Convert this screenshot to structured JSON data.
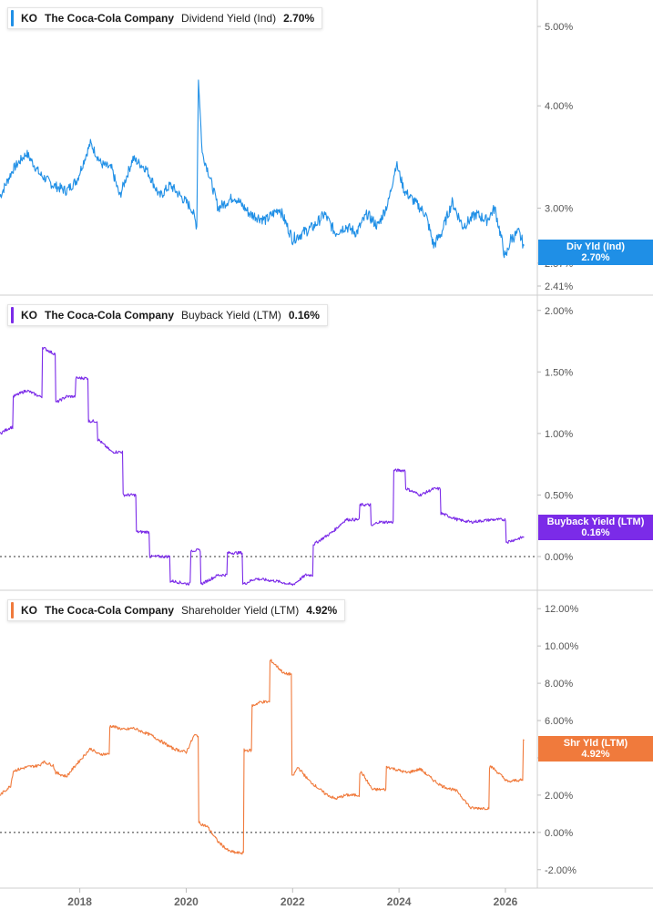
{
  "colors": {
    "dividend": "#1f8fe6",
    "buyback": "#7b2be8",
    "shareholder": "#f07a3c",
    "axis": "#888888",
    "grid": "#d9d9d9"
  },
  "x_axis": {
    "ticks": [
      "2018",
      "2020",
      "2022",
      "2024",
      "2026"
    ]
  },
  "panels": [
    {
      "ticker": "KO",
      "company": "The Coca-Cola Company",
      "metric": "Dividend Yield (Ind)",
      "value": "2.70%",
      "badge_label": "Div Yld (Ind)",
      "badge_value": "2.70%",
      "y_ticks": [
        "5.00%",
        "4.00%",
        "3.00%",
        "2.57%",
        "2.41%"
      ]
    },
    {
      "ticker": "KO",
      "company": "The Coca-Cola Company",
      "metric": "Buyback Yield (LTM)",
      "value": "0.16%",
      "badge_label": "Buyback Yield (LTM)",
      "badge_value": "0.16%",
      "y_ticks": [
        "2.00%",
        "1.50%",
        "1.00%",
        "0.50%",
        "0.00%"
      ]
    },
    {
      "ticker": "KO",
      "company": "The Coca-Cola Company",
      "metric": "Shareholder Yield (LTM)",
      "value": "4.92%",
      "badge_label": "Shr Yld (LTM)",
      "badge_value": "4.92%",
      "y_ticks": [
        "12.00%",
        "10.00%",
        "8.00%",
        "6.00%",
        "4.00%",
        "2.00%",
        "0.00%",
        "-2.00%"
      ]
    }
  ],
  "chart_data": [
    {
      "type": "line",
      "title": "KO The Coca-Cola Company Dividend Yield (Ind) 2.70%",
      "y_scale": "log",
      "ylim": [
        2.41,
        5.25
      ],
      "xlim": [
        2016.5,
        2026.6
      ],
      "series": [
        {
          "name": "Dividend Yield (Ind)",
          "x": [
            2016.5,
            2016.75,
            2017.0,
            2017.25,
            2017.5,
            2017.75,
            2017.95,
            2018.2,
            2018.4,
            2018.6,
            2018.75,
            2019.0,
            2019.25,
            2019.5,
            2019.7,
            2019.9,
            2020.1,
            2020.2,
            2020.23,
            2020.3,
            2020.4,
            2020.6,
            2020.9,
            2021.2,
            2021.5,
            2021.75,
            2022.0,
            2022.2,
            2022.4,
            2022.6,
            2022.8,
            2023.0,
            2023.2,
            2023.4,
            2023.6,
            2023.8,
            2023.95,
            2024.1,
            2024.3,
            2024.5,
            2024.65,
            2024.8,
            2025.0,
            2025.2,
            2025.45,
            2025.65,
            2025.8,
            2026.0,
            2026.1,
            2026.25,
            2026.35
          ],
          "values": [
            3.1,
            3.35,
            3.5,
            3.3,
            3.2,
            3.15,
            3.25,
            3.6,
            3.4,
            3.35,
            3.1,
            3.45,
            3.35,
            3.1,
            3.2,
            3.1,
            3.0,
            2.85,
            4.3,
            3.5,
            3.35,
            3.0,
            3.1,
            2.95,
            2.9,
            3.0,
            2.75,
            2.8,
            2.85,
            2.95,
            2.8,
            2.85,
            2.8,
            2.95,
            2.85,
            3.05,
            3.4,
            3.15,
            3.05,
            2.95,
            2.7,
            2.8,
            3.05,
            2.85,
            2.95,
            2.9,
            3.0,
            2.6,
            2.75,
            2.8,
            2.7
          ]
        }
      ]
    },
    {
      "type": "line",
      "title": "KO The Coca-Cola Company Buyback Yield (LTM) 0.16%",
      "ylim": [
        -0.2,
        2.05
      ],
      "xlim": [
        2016.5,
        2026.6
      ],
      "series": [
        {
          "name": "Buyback Yield (LTM)",
          "x": [
            2016.5,
            2016.7,
            2016.75,
            2017.0,
            2017.25,
            2017.3,
            2017.5,
            2017.55,
            2017.75,
            2017.95,
            2018.2,
            2018.35,
            2018.6,
            2018.85,
            2019.1,
            2019.35,
            2019.75,
            2020.0,
            2020.1,
            2020.3,
            2020.6,
            2020.8,
            2021.1,
            2021.3,
            2021.7,
            2022.0,
            2022.25,
            2022.4,
            2022.75,
            2023.0,
            2023.3,
            2023.5,
            2023.6,
            2023.95,
            2024.15,
            2024.4,
            2024.65,
            2024.8,
            2025.1,
            2025.35,
            2025.75,
            2026.05,
            2026.2,
            2026.35
          ],
          "values": [
            1.0,
            1.05,
            1.3,
            1.35,
            1.3,
            1.7,
            1.65,
            1.25,
            1.3,
            1.45,
            1.1,
            0.95,
            0.85,
            0.5,
            0.2,
            0.0,
            -0.2,
            -0.22,
            0.05,
            -0.22,
            -0.15,
            0.03,
            -0.22,
            -0.18,
            -0.2,
            -0.23,
            -0.15,
            0.1,
            0.2,
            0.3,
            0.42,
            0.25,
            0.28,
            0.7,
            0.55,
            0.5,
            0.55,
            0.35,
            0.3,
            0.28,
            0.3,
            0.12,
            0.14,
            0.16
          ]
        }
      ]
    },
    {
      "type": "line",
      "title": "KO The Coca-Cola Company Shareholder Yield (LTM) 4.92%",
      "ylim": [
        -2.5,
        12.5
      ],
      "xlim": [
        2016.5,
        2026.6
      ],
      "series": [
        {
          "name": "Shareholder Yield (LTM)",
          "x": [
            2016.5,
            2016.7,
            2016.75,
            2017.0,
            2017.25,
            2017.3,
            2017.5,
            2017.55,
            2017.75,
            2017.95,
            2018.2,
            2018.35,
            2018.6,
            2018.85,
            2019.0,
            2019.35,
            2019.75,
            2020.0,
            2020.15,
            2020.25,
            2020.4,
            2020.6,
            2020.8,
            2020.95,
            2021.1,
            2021.25,
            2021.4,
            2021.6,
            2021.85,
            2022.0,
            2022.1,
            2022.3,
            2022.6,
            2022.8,
            2023.0,
            2023.3,
            2023.5,
            2023.8,
            2024.15,
            2024.4,
            2024.65,
            2024.8,
            2025.1,
            2025.35,
            2025.75,
            2026.05,
            2026.2,
            2026.35
          ],
          "values": [
            2.0,
            2.5,
            3.3,
            3.5,
            3.6,
            3.8,
            3.6,
            3.2,
            3.0,
            3.7,
            4.5,
            4.2,
            5.7,
            5.5,
            5.6,
            5.2,
            4.5,
            4.3,
            5.2,
            0.5,
            0.3,
            -0.5,
            -1.0,
            -1.1,
            4.4,
            6.8,
            7.0,
            9.2,
            8.5,
            3.0,
            3.5,
            2.8,
            2.1,
            1.8,
            2.0,
            3.2,
            2.3,
            3.5,
            3.2,
            3.4,
            2.8,
            2.5,
            2.2,
            1.3,
            3.5,
            2.7,
            2.8,
            4.92
          ]
        }
      ]
    }
  ]
}
